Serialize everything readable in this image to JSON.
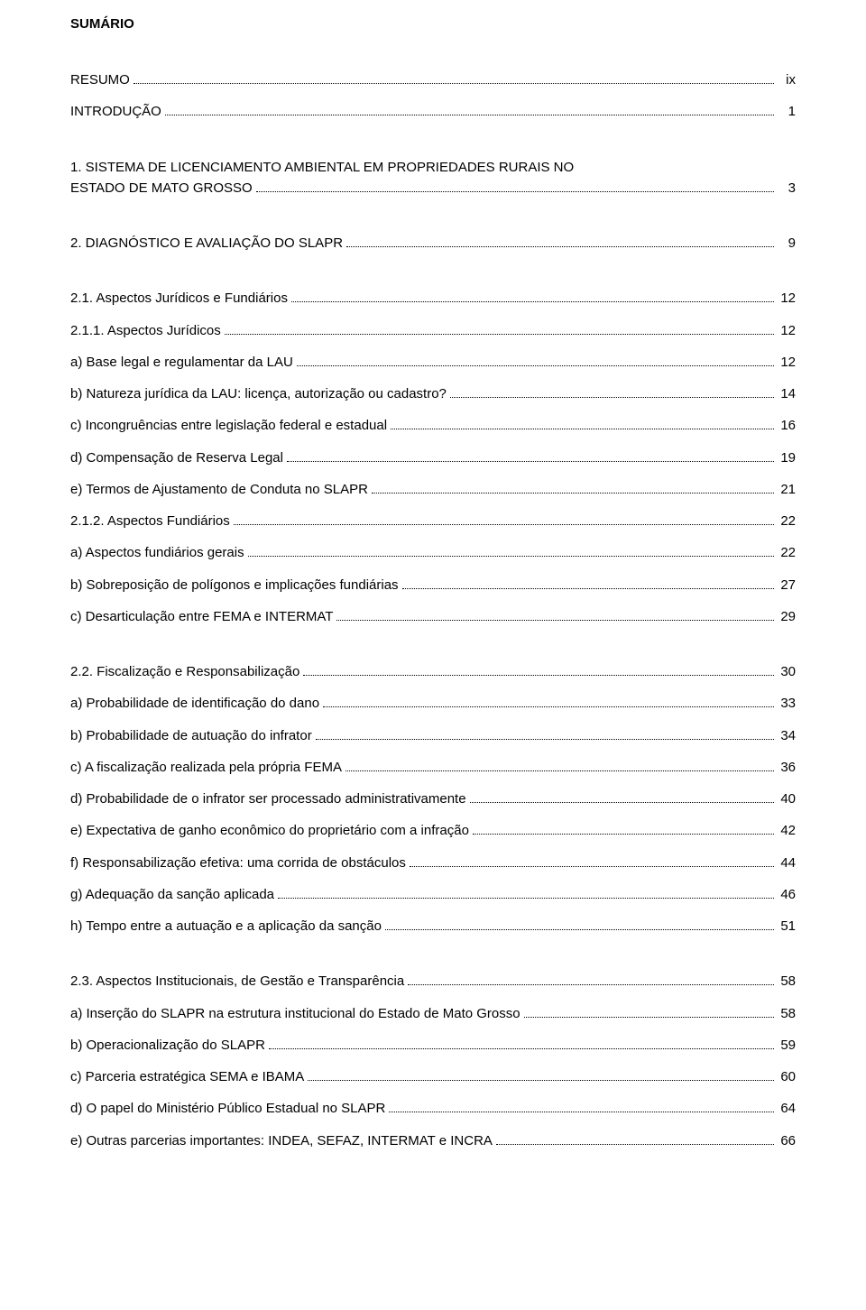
{
  "title": "SUMÁRIO",
  "entries": [
    {
      "label": "RESUMO",
      "page": "ix",
      "gapAfter": false
    },
    {
      "label": "INTRODUÇÃO",
      "page": "1",
      "gapAfter": true
    },
    {
      "label": "1. SISTEMA DE LICENCIAMENTO AMBIENTAL EM PROPRIEDADES RURAIS NO ESTADO DE MATO GROSSO",
      "page": "3",
      "wrap": true,
      "gapAfter": true
    },
    {
      "label": "2. DIAGNÓSTICO E AVALIAÇÃO DO SLAPR",
      "page": "9",
      "gapAfter": true
    },
    {
      "label": "2.1. Aspectos Jurídicos e Fundiários",
      "page": "12",
      "gapAfter": false
    },
    {
      "label": "2.1.1. Aspectos Jurídicos",
      "page": "12",
      "gapAfter": false
    },
    {
      "label": "a) Base legal e regulamentar da LAU",
      "page": "12",
      "gapAfter": false
    },
    {
      "label": "b) Natureza jurídica da LAU: licença, autorização ou cadastro?",
      "page": "14",
      "gapAfter": false
    },
    {
      "label": "c) Incongruências entre legislação federal e estadual",
      "page": "16",
      "gapAfter": false
    },
    {
      "label": "d) Compensação de Reserva Legal",
      "page": "19",
      "gapAfter": false
    },
    {
      "label": "e) Termos de Ajustamento de Conduta no SLAPR",
      "page": "21",
      "gapAfter": false
    },
    {
      "label": "2.1.2. Aspectos Fundiários",
      "page": "22",
      "gapAfter": false
    },
    {
      "label": "a) Aspectos fundiários gerais",
      "page": "22",
      "gapAfter": false
    },
    {
      "label": "b) Sobreposição de polígonos e implicações fundiárias",
      "page": "27",
      "gapAfter": false
    },
    {
      "label": "c) Desarticulação entre FEMA e INTERMAT",
      "page": "29",
      "gapAfter": true
    },
    {
      "label": "2.2. Fiscalização e Responsabilização",
      "page": "30",
      "gapAfter": false
    },
    {
      "label": "a) Probabilidade de identificação do dano",
      "page": "33",
      "gapAfter": false
    },
    {
      "label": "b) Probabilidade de autuação do infrator",
      "page": "34",
      "gapAfter": false
    },
    {
      "label": "c) A fiscalização realizada pela própria FEMA",
      "page": "36",
      "gapAfter": false
    },
    {
      "label": "d) Probabilidade de o infrator ser processado administrativamente",
      "page": "40",
      "gapAfter": false
    },
    {
      "label": "e) Expectativa de ganho econômico do proprietário com a infração",
      "page": "42",
      "gapAfter": false
    },
    {
      "label": "f) Responsabilização efetiva: uma corrida de obstáculos",
      "page": "44",
      "gapAfter": false
    },
    {
      "label": "g) Adequação da sanção aplicada",
      "page": "46",
      "gapAfter": false
    },
    {
      "label": "h) Tempo entre a autuação e a aplicação da sanção",
      "page": "51",
      "gapAfter": true
    },
    {
      "label": "2.3. Aspectos Institucionais, de Gestão e Transparência",
      "page": "58",
      "gapAfter": false
    },
    {
      "label": "a) Inserção do SLAPR na estrutura institucional do Estado de Mato Grosso",
      "page": "58",
      "gapAfter": false
    },
    {
      "label": "b) Operacionalização do SLAPR",
      "page": "59",
      "gapAfter": false
    },
    {
      "label": "c) Parceria estratégica SEMA e IBAMA",
      "page": "60",
      "gapAfter": false
    },
    {
      "label": "d) O papel do Ministério Público Estadual no SLAPR",
      "page": "64",
      "gapAfter": false
    },
    {
      "label": "e) Outras parcerias importantes: INDEA, SEFAZ, INTERMAT e INCRA",
      "page": "66",
      "gapAfter": false
    }
  ]
}
